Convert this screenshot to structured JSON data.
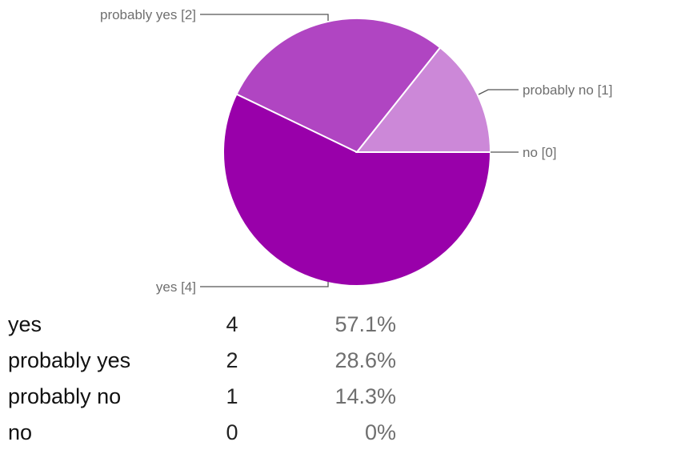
{
  "chart_data": {
    "type": "pie",
    "categories": [
      "yes",
      "probably yes",
      "probably no",
      "no"
    ],
    "values": [
      4,
      2,
      1,
      0
    ],
    "slice_labels": [
      "yes [4]",
      "probably yes [2]",
      "probably no [1]",
      "no [0]"
    ],
    "colors": [
      "#9900aa",
      "#b045c2",
      "#cc88d8",
      "#e3c3ea"
    ],
    "legend": "none"
  },
  "table": {
    "rows": [
      {
        "label": "yes",
        "count": "4",
        "percent": "57.1%"
      },
      {
        "label": "probably yes",
        "count": "2",
        "percent": "28.6%"
      },
      {
        "label": "probably no",
        "count": "1",
        "percent": "14.3%"
      },
      {
        "label": "no",
        "count": "0",
        "percent": "0%"
      }
    ]
  }
}
